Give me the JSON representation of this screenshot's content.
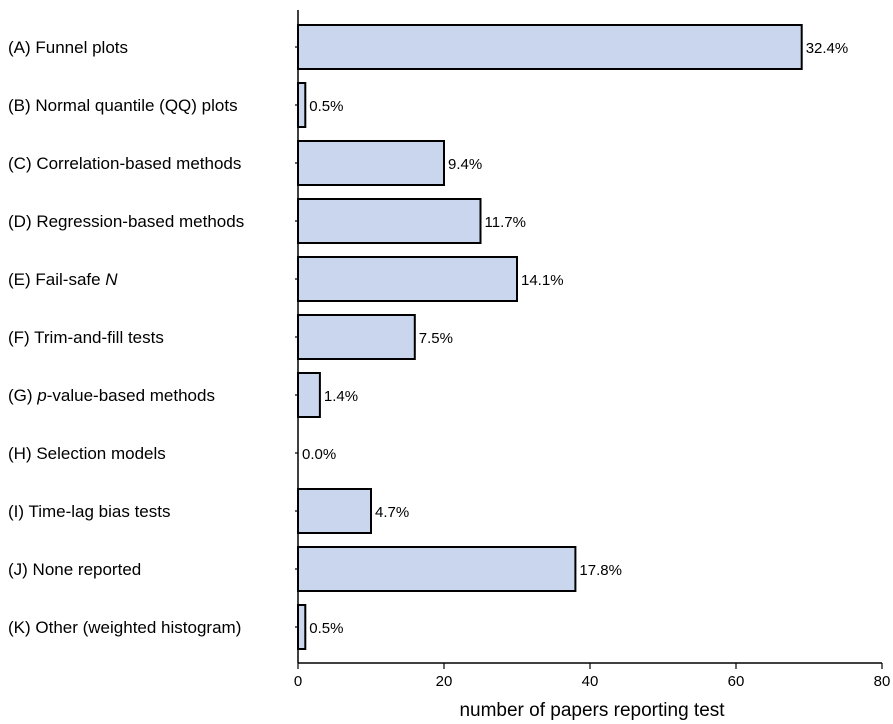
{
  "chart_data": {
    "type": "bar",
    "orientation": "horizontal",
    "title": "",
    "xlabel": "number of papers reporting test",
    "ylabel": "",
    "xlim": [
      0,
      80
    ],
    "xticks": [
      0,
      20,
      40,
      60,
      80
    ],
    "grid": false,
    "bar_color": "#c9d6ee",
    "bar_edge_color": "#000000",
    "categories": [
      [
        {
          "t": "(A) Funnel plots",
          "i": false
        }
      ],
      [
        {
          "t": "(B) Normal quantile (QQ) plots",
          "i": false
        }
      ],
      [
        {
          "t": "(C) Correlation-based methods",
          "i": false
        }
      ],
      [
        {
          "t": "(D) Regression-based methods",
          "i": false
        }
      ],
      [
        {
          "t": "(E) Fail-safe ",
          "i": false
        },
        {
          "t": "N",
          "i": true
        }
      ],
      [
        {
          "t": "(F) Trim-and-fill tests",
          "i": false
        }
      ],
      [
        {
          "t": "(G) ",
          "i": false
        },
        {
          "t": "p",
          "i": true
        },
        {
          "t": "-value-based methods",
          "i": false
        }
      ],
      [
        {
          "t": "(H) Selection models",
          "i": false
        }
      ],
      [
        {
          "t": "(I) Time-lag bias tests",
          "i": false
        }
      ],
      [
        {
          "t": "(J) None reported",
          "i": false
        }
      ],
      [
        {
          "t": "(K) Other (weighted histogram)",
          "i": false
        }
      ]
    ],
    "values": [
      69,
      1,
      20,
      25,
      30,
      16,
      3,
      0,
      10,
      38,
      1
    ],
    "value_labels": [
      "32.4%",
      "0.5%",
      "9.4%",
      "11.7%",
      "14.1%",
      "7.5%",
      "1.4%",
      "0.0%",
      "4.7%",
      "17.8%",
      "0.5%"
    ]
  }
}
